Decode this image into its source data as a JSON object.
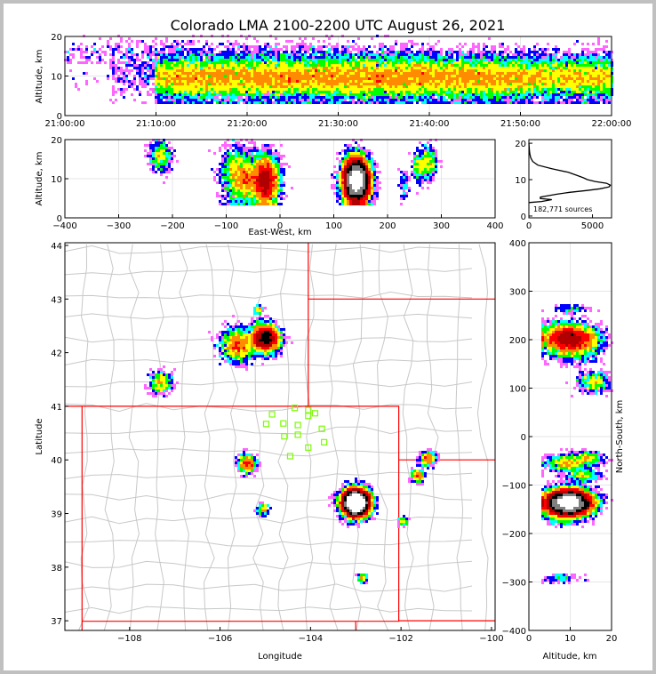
{
  "chart_data": {
    "type": "heatmap",
    "title": "Colorado LMA 2100-2200 UTC August 26, 2021",
    "colormap": [
      "#ff66ff",
      "#0000ff",
      "#00ffff",
      "#00ff00",
      "#ffff00",
      "#ff8c00",
      "#ff0000",
      "#b00000",
      "#000000",
      "#808080",
      "#ffffff"
    ],
    "state_border_color": "#ff0000",
    "county_color": "#c8c8c8",
    "station_color": "#7cfc00",
    "panels": {
      "time_height": {
        "ylabel": "Altitude, km",
        "ylim": [
          0,
          20
        ],
        "yticks": [
          "0",
          "10",
          "20"
        ],
        "xlim_minutes": [
          0,
          60
        ],
        "xticks": [
          "21:00:00",
          "21:10:00",
          "21:20:00",
          "21:30:00",
          "21:40:00",
          "21:50:00",
          "22:00:00"
        ]
      },
      "ew_height": {
        "xlabel": "East-West, km",
        "ylabel": "Altitude, km",
        "xlim": [
          -400,
          400
        ],
        "ylim": [
          0,
          20
        ],
        "xticks": [
          "−400",
          "−300",
          "−200",
          "−100",
          "0",
          "100",
          "200",
          "300",
          "400"
        ],
        "yticks": [
          "0",
          "10",
          "20"
        ]
      },
      "histogram": {
        "type": "line",
        "xlim": [
          0,
          6500
        ],
        "ylim": [
          -0.5,
          21
        ],
        "xticks": [
          "0",
          "5000"
        ],
        "yticks": [
          "0",
          "10",
          "20"
        ],
        "annotation": "182,771 sources",
        "altitude_km": [
          3.7,
          4.0,
          4.5,
          4.8,
          5.2,
          5.5,
          6.0,
          6.5,
          7.0,
          7.5,
          8.0,
          8.5,
          9.0,
          9.5,
          10.0,
          10.5,
          11.0,
          12.0,
          13.0,
          14.0,
          15.0,
          16.0,
          17.0,
          18.0,
          19.0,
          20.0
        ],
        "count": [
          0,
          1000,
          1800,
          900,
          900,
          1400,
          2200,
          3200,
          4500,
          5600,
          6300,
          6400,
          6100,
          5200,
          4600,
          4300,
          3900,
          3100,
          1800,
          700,
          300,
          150,
          80,
          40,
          20,
          0
        ]
      },
      "plan_view": {
        "xlabel": "Longitude",
        "ylabel": "Latitude",
        "xlim": [
          -109.43,
          -99.92
        ],
        "ylim": [
          36.82,
          44.05
        ],
        "xticks": [
          "−108",
          "−106",
          "−104",
          "−102",
          "−100"
        ],
        "yticks": [
          "37",
          "38",
          "39",
          "40",
          "41",
          "42",
          "43",
          "44"
        ],
        "stations": [
          [
            -104.35,
            40.97
          ],
          [
            -104.05,
            40.93
          ],
          [
            -103.9,
            40.87
          ],
          [
            -104.85,
            40.85
          ],
          [
            -104.05,
            40.82
          ],
          [
            -104.98,
            40.67
          ],
          [
            -104.6,
            40.68
          ],
          [
            -104.28,
            40.65
          ],
          [
            -103.75,
            40.58
          ],
          [
            -104.28,
            40.47
          ],
          [
            -104.58,
            40.44
          ],
          [
            -103.7,
            40.33
          ],
          [
            -104.05,
            40.23
          ],
          [
            -104.45,
            40.07
          ]
        ]
      },
      "ns_height": {
        "xlabel": "Altitude, km",
        "ylabel": "North-South, km",
        "xlim": [
          0,
          20
        ],
        "ylim": [
          -400,
          400
        ],
        "xticks": [
          "0",
          "10",
          "20"
        ],
        "yticks": [
          "−400",
          "−300",
          "−200",
          "−100",
          "0",
          "100",
          "200",
          "300",
          "400"
        ]
      }
    },
    "cells": [
      {
        "lon": -103.0,
        "lat": 39.2,
        "sd": 0.11,
        "alt": 9.5,
        "altsd": 2.6,
        "n": 26000,
        "t0": 10,
        "t1": 60
      },
      {
        "lon": -105.0,
        "lat": 42.27,
        "sd": 0.12,
        "alt": 9.5,
        "altsd": 3.0,
        "n": 5000,
        "t0": 12,
        "t1": 50
      },
      {
        "lon": -105.6,
        "lat": 42.15,
        "sd": 0.15,
        "alt": 11,
        "altsd": 3.5,
        "n": 1800,
        "t0": 5,
        "t1": 40
      },
      {
        "lon": -107.3,
        "lat": 41.45,
        "sd": 0.1,
        "alt": 15.5,
        "altsd": 2.0,
        "n": 500,
        "t0": 0,
        "t1": 30
      },
      {
        "lon": -105.4,
        "lat": 39.93,
        "sd": 0.08,
        "alt": 9,
        "altsd": 2.5,
        "n": 700,
        "t0": 20,
        "t1": 60
      },
      {
        "lon": -101.4,
        "lat": 40.02,
        "sd": 0.07,
        "alt": 14,
        "altsd": 2.0,
        "n": 400,
        "t0": 30,
        "t1": 60
      },
      {
        "lon": -101.62,
        "lat": 39.7,
        "sd": 0.06,
        "alt": 13,
        "altsd": 2.0,
        "n": 300,
        "t0": 30,
        "t1": 60
      },
      {
        "lon": -105.05,
        "lat": 39.08,
        "sd": 0.05,
        "alt": 8,
        "altsd": 2.0,
        "n": 150,
        "t0": 30,
        "t1": 60
      },
      {
        "lon": -102.85,
        "lat": 37.8,
        "sd": 0.04,
        "alt": 8,
        "altsd": 2.0,
        "n": 100,
        "t0": 30,
        "t1": 60
      },
      {
        "lon": -105.15,
        "lat": 42.8,
        "sd": 0.04,
        "alt": 10,
        "altsd": 2.0,
        "n": 100,
        "t0": 0,
        "t1": 30
      },
      {
        "lon": -101.95,
        "lat": 38.85,
        "sd": 0.04,
        "alt": 8,
        "altsd": 2.0,
        "n": 80,
        "t0": 30,
        "t1": 60
      }
    ]
  }
}
